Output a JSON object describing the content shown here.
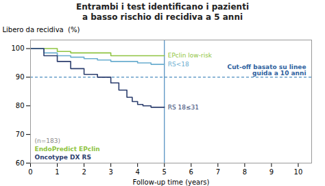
{
  "chart_data": {
    "type": "line",
    "title": "Entrambi i test identificano i pazienti\na basso rischio di recidiva a 5 anni",
    "xlabel": "Follow-up time (years)",
    "ylabel": "Libero da recidiva  (%)",
    "xlim": [
      0,
      10.5
    ],
    "ylim": [
      60,
      103
    ],
    "xticks": [
      0,
      1,
      2,
      3,
      4,
      5,
      6,
      7,
      8,
      9,
      10
    ],
    "yticks": [
      60,
      70,
      80,
      90,
      100
    ],
    "grid": false,
    "series": [
      {
        "name": "EPclin low-risk",
        "color": "#8fc441",
        "x": [
          0,
          1.0,
          1.0,
          1.5,
          1.5,
          3.0,
          3.0,
          5.0
        ],
        "values": [
          100,
          100,
          99,
          99,
          98.5,
          98.5,
          97.5,
          97.5
        ]
      },
      {
        "name": "RS<18",
        "color": "#6aadcf",
        "x": [
          0,
          0.5,
          0.5,
          1.0,
          1.0,
          1.5,
          1.5,
          2.0,
          2.0,
          2.5,
          2.5,
          3.0,
          3.0,
          4.0,
          4.0,
          4.5,
          4.5,
          5.0
        ],
        "values": [
          100,
          100,
          98.5,
          98.5,
          97.5,
          97.5,
          97,
          97,
          96.5,
          96.5,
          96,
          96,
          95.5,
          95.5,
          95,
          95,
          94.5,
          94.5
        ]
      },
      {
        "name": "RS 18≤31",
        "color": "#2c3e6e",
        "x": [
          0,
          0.5,
          0.5,
          1.0,
          1.0,
          1.5,
          1.5,
          2.0,
          2.0,
          2.5,
          2.5,
          3.0,
          3.0,
          3.3,
          3.3,
          3.6,
          3.6,
          3.8,
          3.8,
          4.0,
          4.0,
          4.2,
          4.2,
          4.5,
          4.5,
          5.0
        ],
        "values": [
          100,
          100,
          97.5,
          97.5,
          95.5,
          95.5,
          93,
          93,
          91,
          91,
          90,
          90,
          88,
          88,
          85.5,
          85.5,
          83,
          83,
          81.5,
          81.5,
          80.5,
          80.5,
          80,
          80,
          79.5,
          79.5
        ]
      }
    ],
    "reference_lines": [
      {
        "axis": "y",
        "value": 90,
        "color": "#4a8bbf",
        "line_style": "dashed",
        "label": "Cut-off basato su linee\nguida a 10 anni",
        "label_color": "#2c5f9e"
      },
      {
        "axis": "x",
        "value": 5.0,
        "color": "#4a8bbf",
        "line_style": "solid"
      }
    ],
    "annotations": [
      {
        "text": "(n=183)",
        "color": "#888888"
      },
      {
        "text": "EndoPredict EPclin",
        "color": "#8fc441"
      },
      {
        "text": "Oncotype DX RS",
        "color": "#2c3e6e"
      }
    ]
  }
}
